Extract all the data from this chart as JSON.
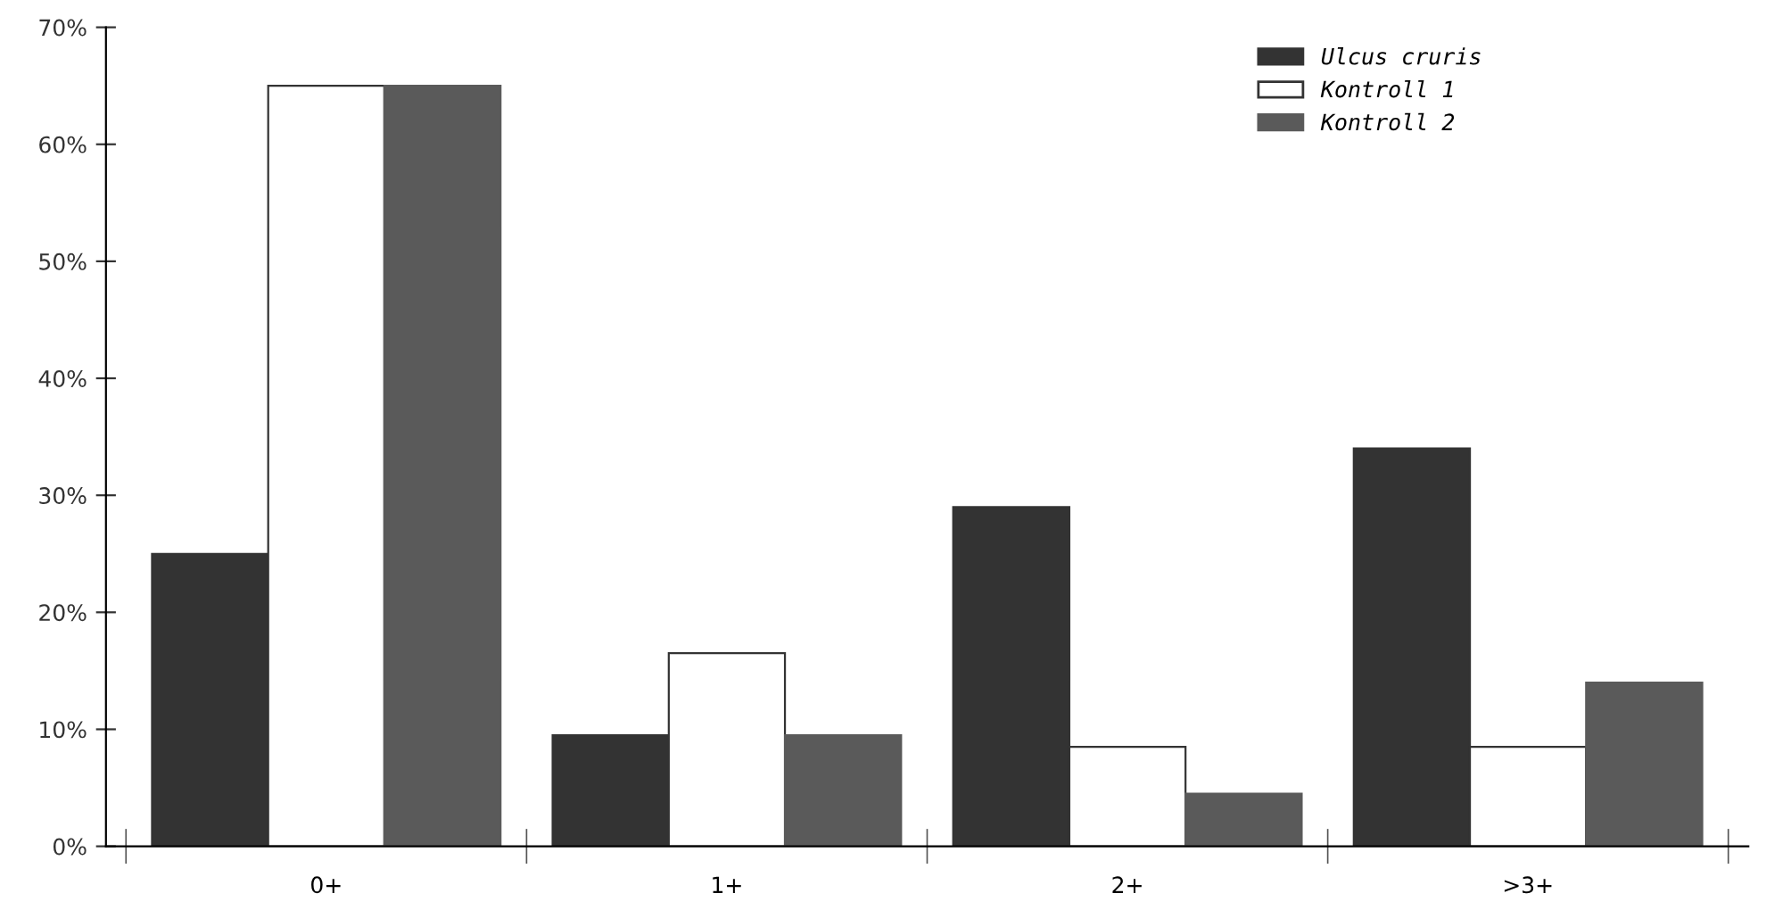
{
  "chart_data": {
    "type": "bar",
    "categories": [
      "0+",
      "1+",
      "2+",
      ">3+"
    ],
    "series": [
      {
        "name": "Ulcus cruris",
        "color": "#333333",
        "values": [
          25,
          9.5,
          29,
          34
        ]
      },
      {
        "name": "Kontroll 1",
        "color": "#ffffff",
        "values": [
          65,
          16.5,
          8.5,
          8.5
        ]
      },
      {
        "name": "Kontroll 2",
        "color": "#5a5a5a",
        "values": [
          65,
          9.5,
          4.5,
          14
        ]
      }
    ],
    "ylim": [
      0,
      70
    ],
    "yticks": [
      {
        "value": 0,
        "label": "0%"
      },
      {
        "value": 10,
        "label": "10%"
      },
      {
        "value": 20,
        "label": "20%"
      },
      {
        "value": 30,
        "label": "30%"
      },
      {
        "value": 40,
        "label": "40%"
      },
      {
        "value": 50,
        "label": "50%"
      },
      {
        "value": 60,
        "label": "60%"
      },
      {
        "value": 70,
        "label": "70%"
      }
    ],
    "grid": false,
    "legend": "top right"
  }
}
